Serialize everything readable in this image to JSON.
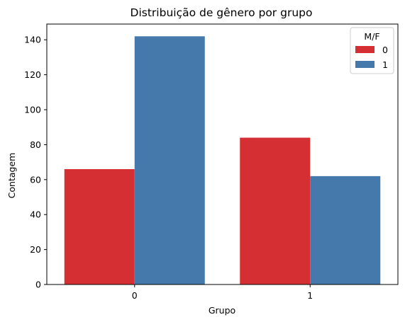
{
  "chart_data": {
    "type": "bar",
    "title": "Distribuição de gênero por grupo",
    "xlabel": "Grupo",
    "ylabel": "Contagem",
    "categories": [
      "0",
      "1"
    ],
    "series": [
      {
        "name": "0",
        "color": "#d62f33",
        "values": [
          66,
          84
        ]
      },
      {
        "name": "1",
        "color": "#4579ab",
        "values": [
          142,
          62
        ]
      }
    ],
    "ylim": [
      0,
      149
    ],
    "yticks": [
      0,
      20,
      40,
      60,
      80,
      100,
      120,
      140
    ],
    "legend": {
      "title": "M/F",
      "position": "top-right"
    },
    "grid": false
  }
}
